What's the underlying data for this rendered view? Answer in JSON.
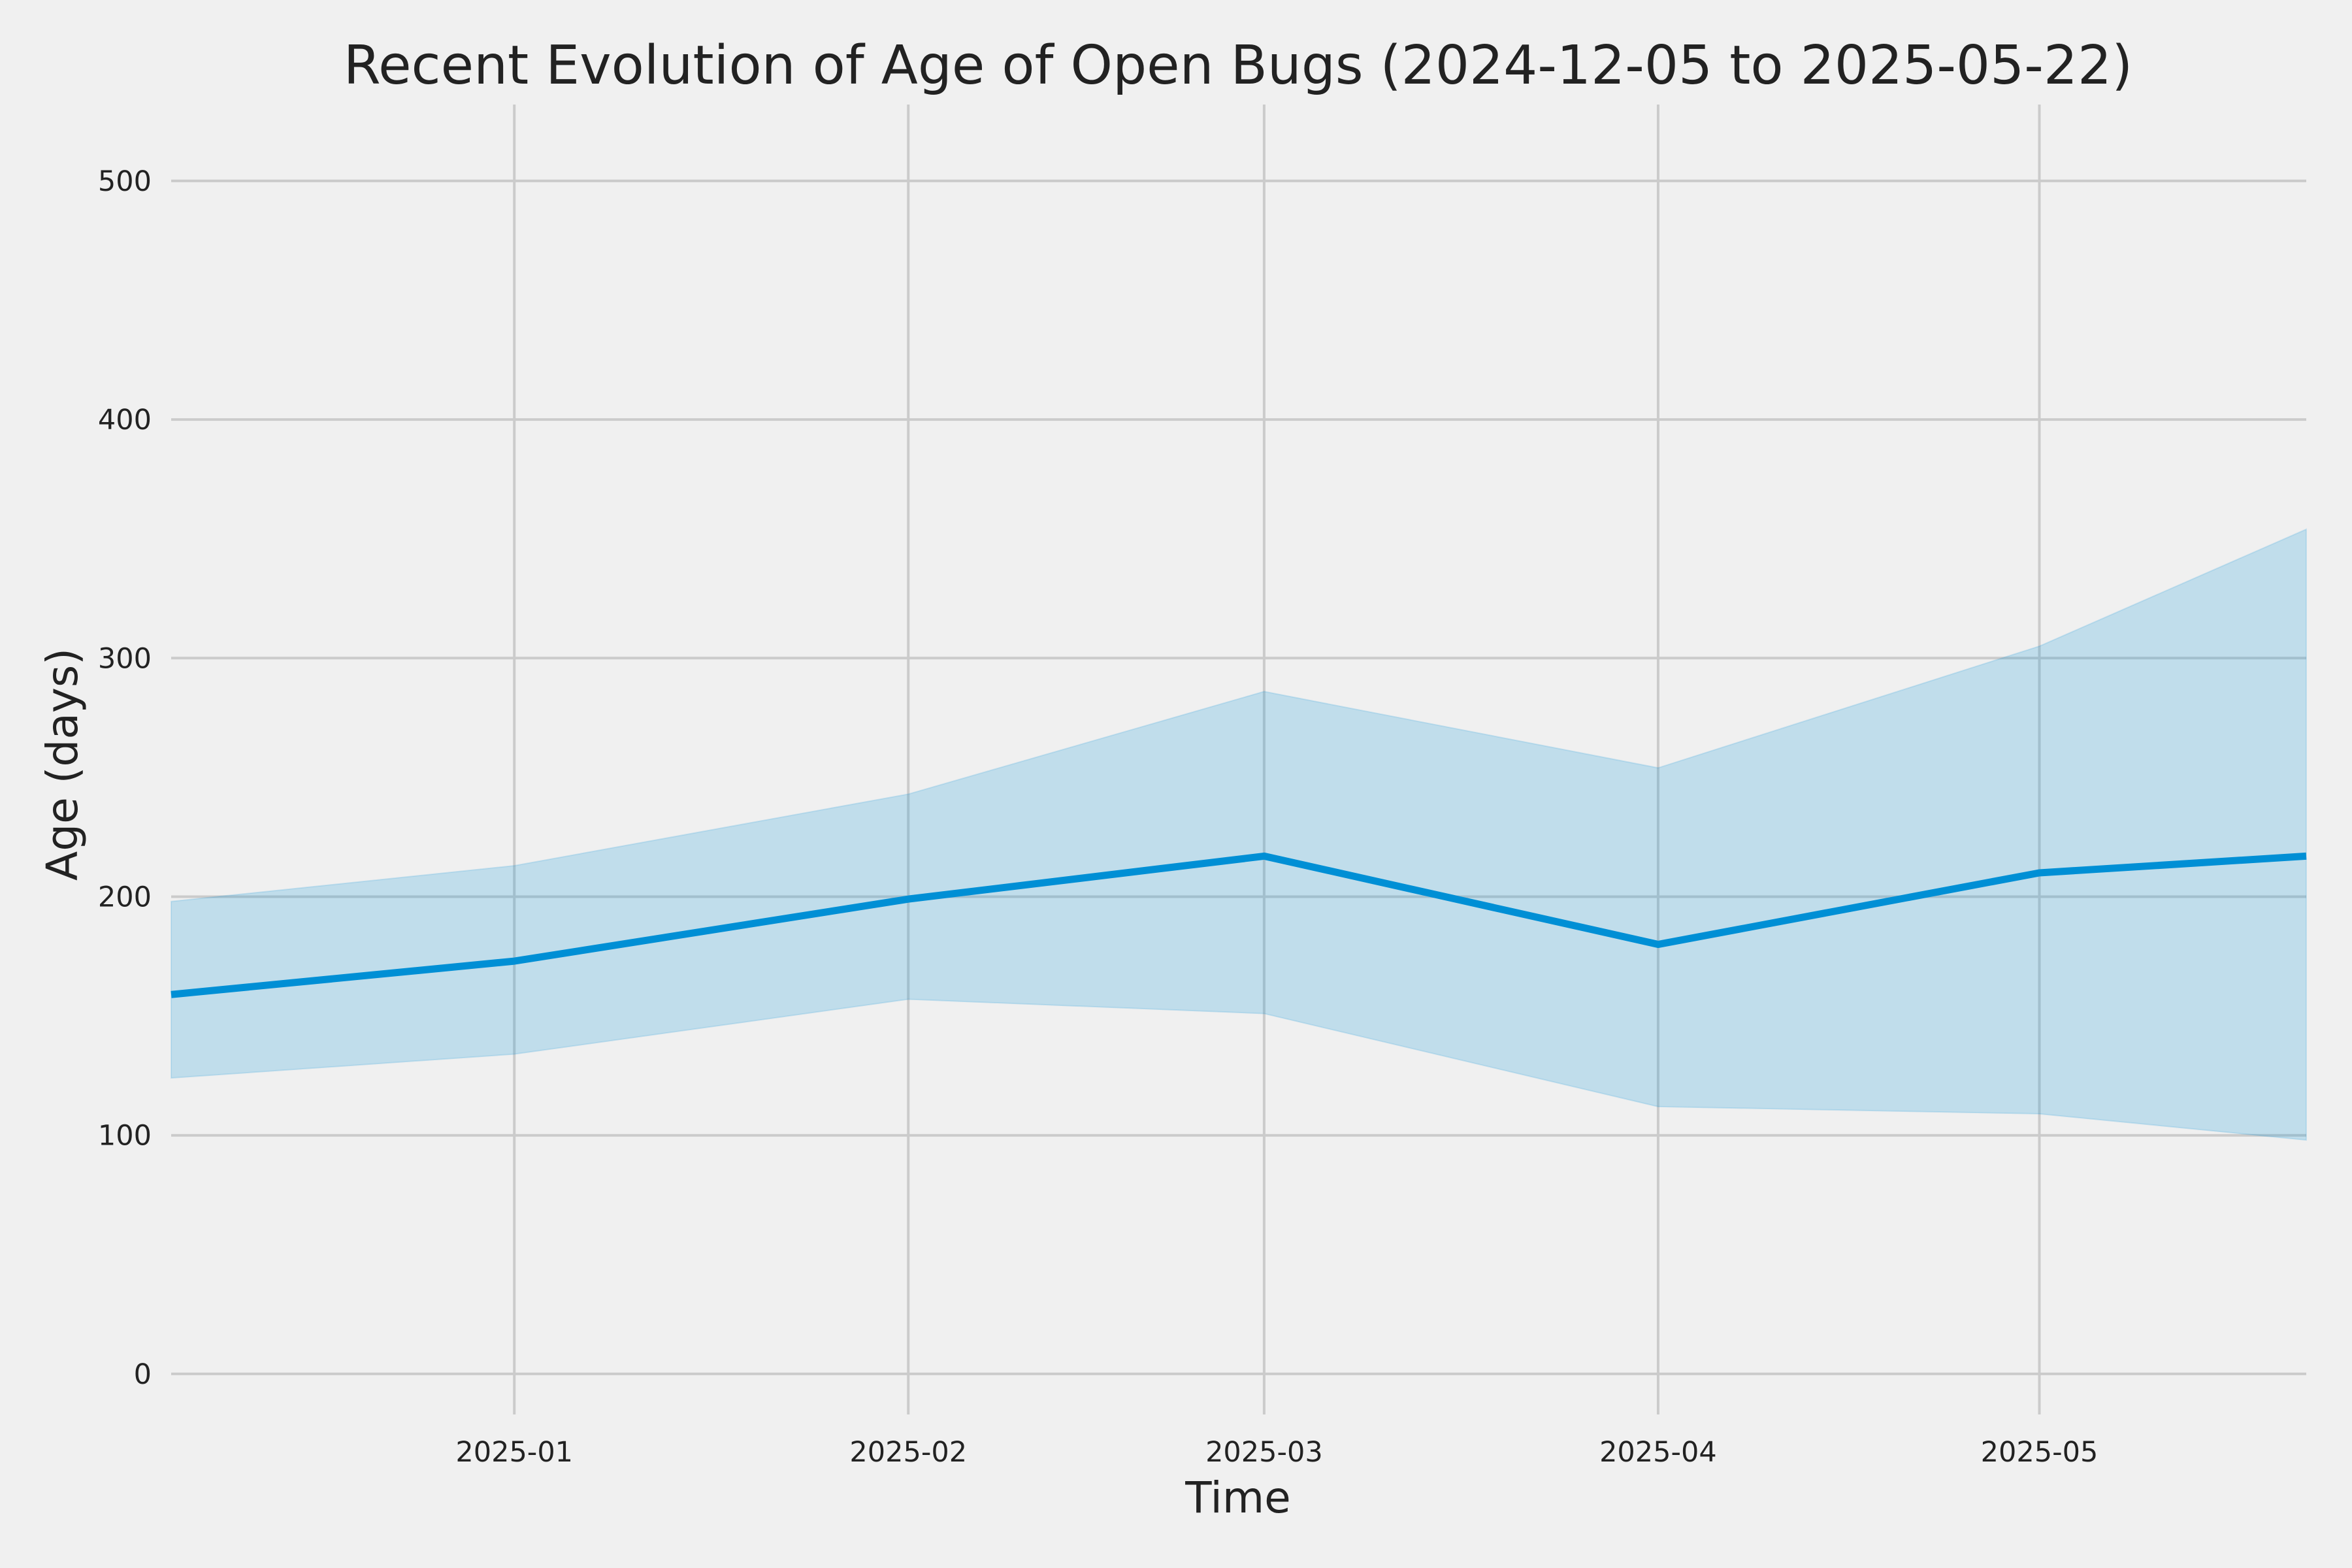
{
  "chart_data": {
    "type": "line",
    "title": "Recent Evolution of Age of Open Bugs (2024-12-05 to 2025-05-22)",
    "xlabel": "Time",
    "ylabel": "Age (days)",
    "x_tick_labels": [
      "2025-01",
      "2025-02",
      "2025-03",
      "2025-04",
      "2025-05"
    ],
    "x_ticks": [
      "2025-01-01",
      "2025-02-01",
      "2025-03-01",
      "2025-04-01",
      "2025-05-01"
    ],
    "y_ticks": [
      0,
      100,
      200,
      300,
      400,
      500
    ],
    "xlim": [
      "2024-12-05",
      "2025-05-22"
    ],
    "ylim": [
      -17,
      532
    ],
    "grid": true,
    "series": [
      {
        "x": [
          "2024-12-05",
          "2025-01-01",
          "2025-02-01",
          "2025-03-01",
          "2025-04-01",
          "2025-05-01",
          "2025-05-22"
        ],
        "values": [
          159,
          173,
          199,
          217,
          180,
          210,
          217
        ],
        "band_upper": [
          198,
          213,
          243,
          286,
          254,
          305,
          354
        ],
        "band_lower": [
          124,
          134,
          157,
          151,
          112,
          109,
          98
        ],
        "color": "#008fd5",
        "band_color": "#008fd5"
      }
    ]
  }
}
